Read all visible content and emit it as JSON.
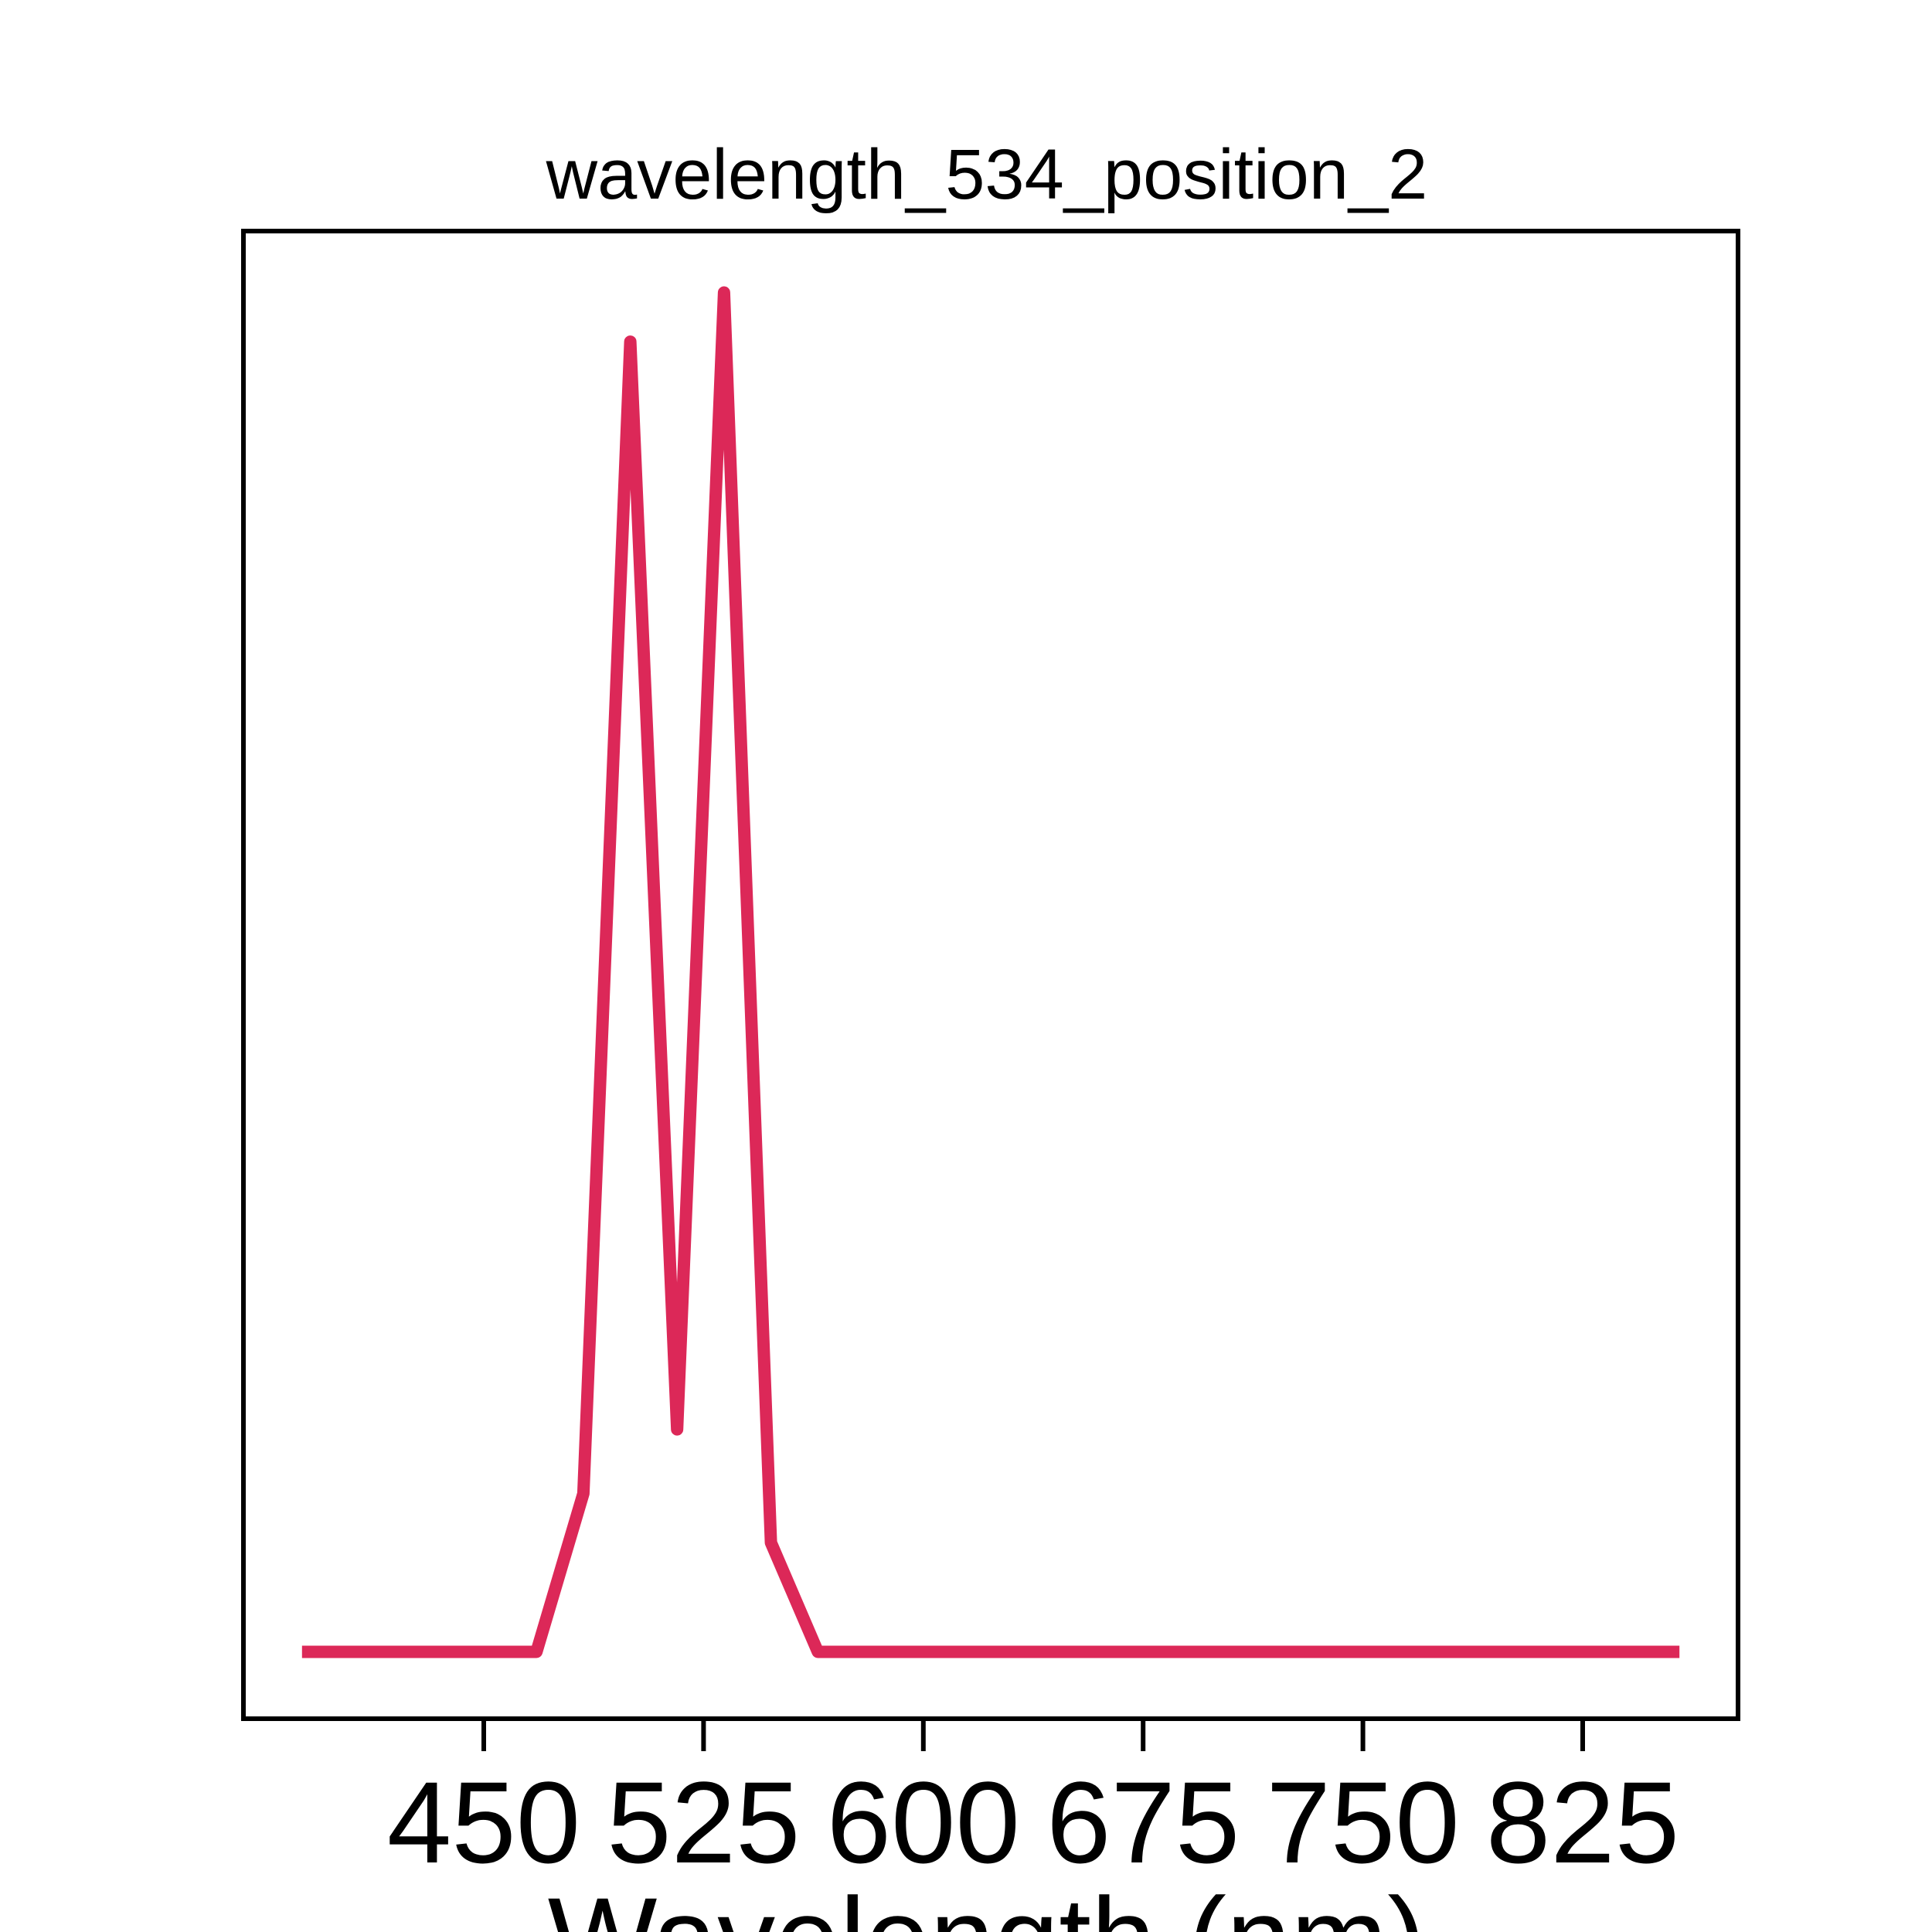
{
  "chart_data": {
    "type": "line",
    "title": "wavelength_534_position_2",
    "xlabel": "Wavelength (nm)",
    "ylabel": "",
    "x_ticks": [
      450,
      525,
      600,
      675,
      750,
      825
    ],
    "x_tick_labels": [
      "450",
      "525",
      "600",
      "675",
      "750",
      "825"
    ],
    "xlim": [
      368,
      878
    ],
    "ylim": [
      -0.045,
      1.045
    ],
    "grid": false,
    "y_ticks_visible": false,
    "series": [
      {
        "color": "#dc2858",
        "x": [
          388,
          410,
          420,
          432,
          468,
          484,
          500,
          516,
          532,
          548,
          564,
          580,
          596,
          612,
          628,
          644,
          660,
          676,
          692,
          708,
          724,
          740,
          756,
          772,
          788,
          804,
          820,
          836,
          852,
          858
        ],
        "y": [
          0.004,
          0.004,
          0.004,
          0.004,
          0.004,
          0.12,
          0.964,
          0.167,
          1.0,
          0.084,
          0.004,
          0.004,
          0.004,
          0.004,
          0.004,
          0.004,
          0.004,
          0.004,
          0.004,
          0.004,
          0.004,
          0.004,
          0.004,
          0.004,
          0.004,
          0.004,
          0.004,
          0.004,
          0.004,
          0.004
        ]
      }
    ]
  }
}
